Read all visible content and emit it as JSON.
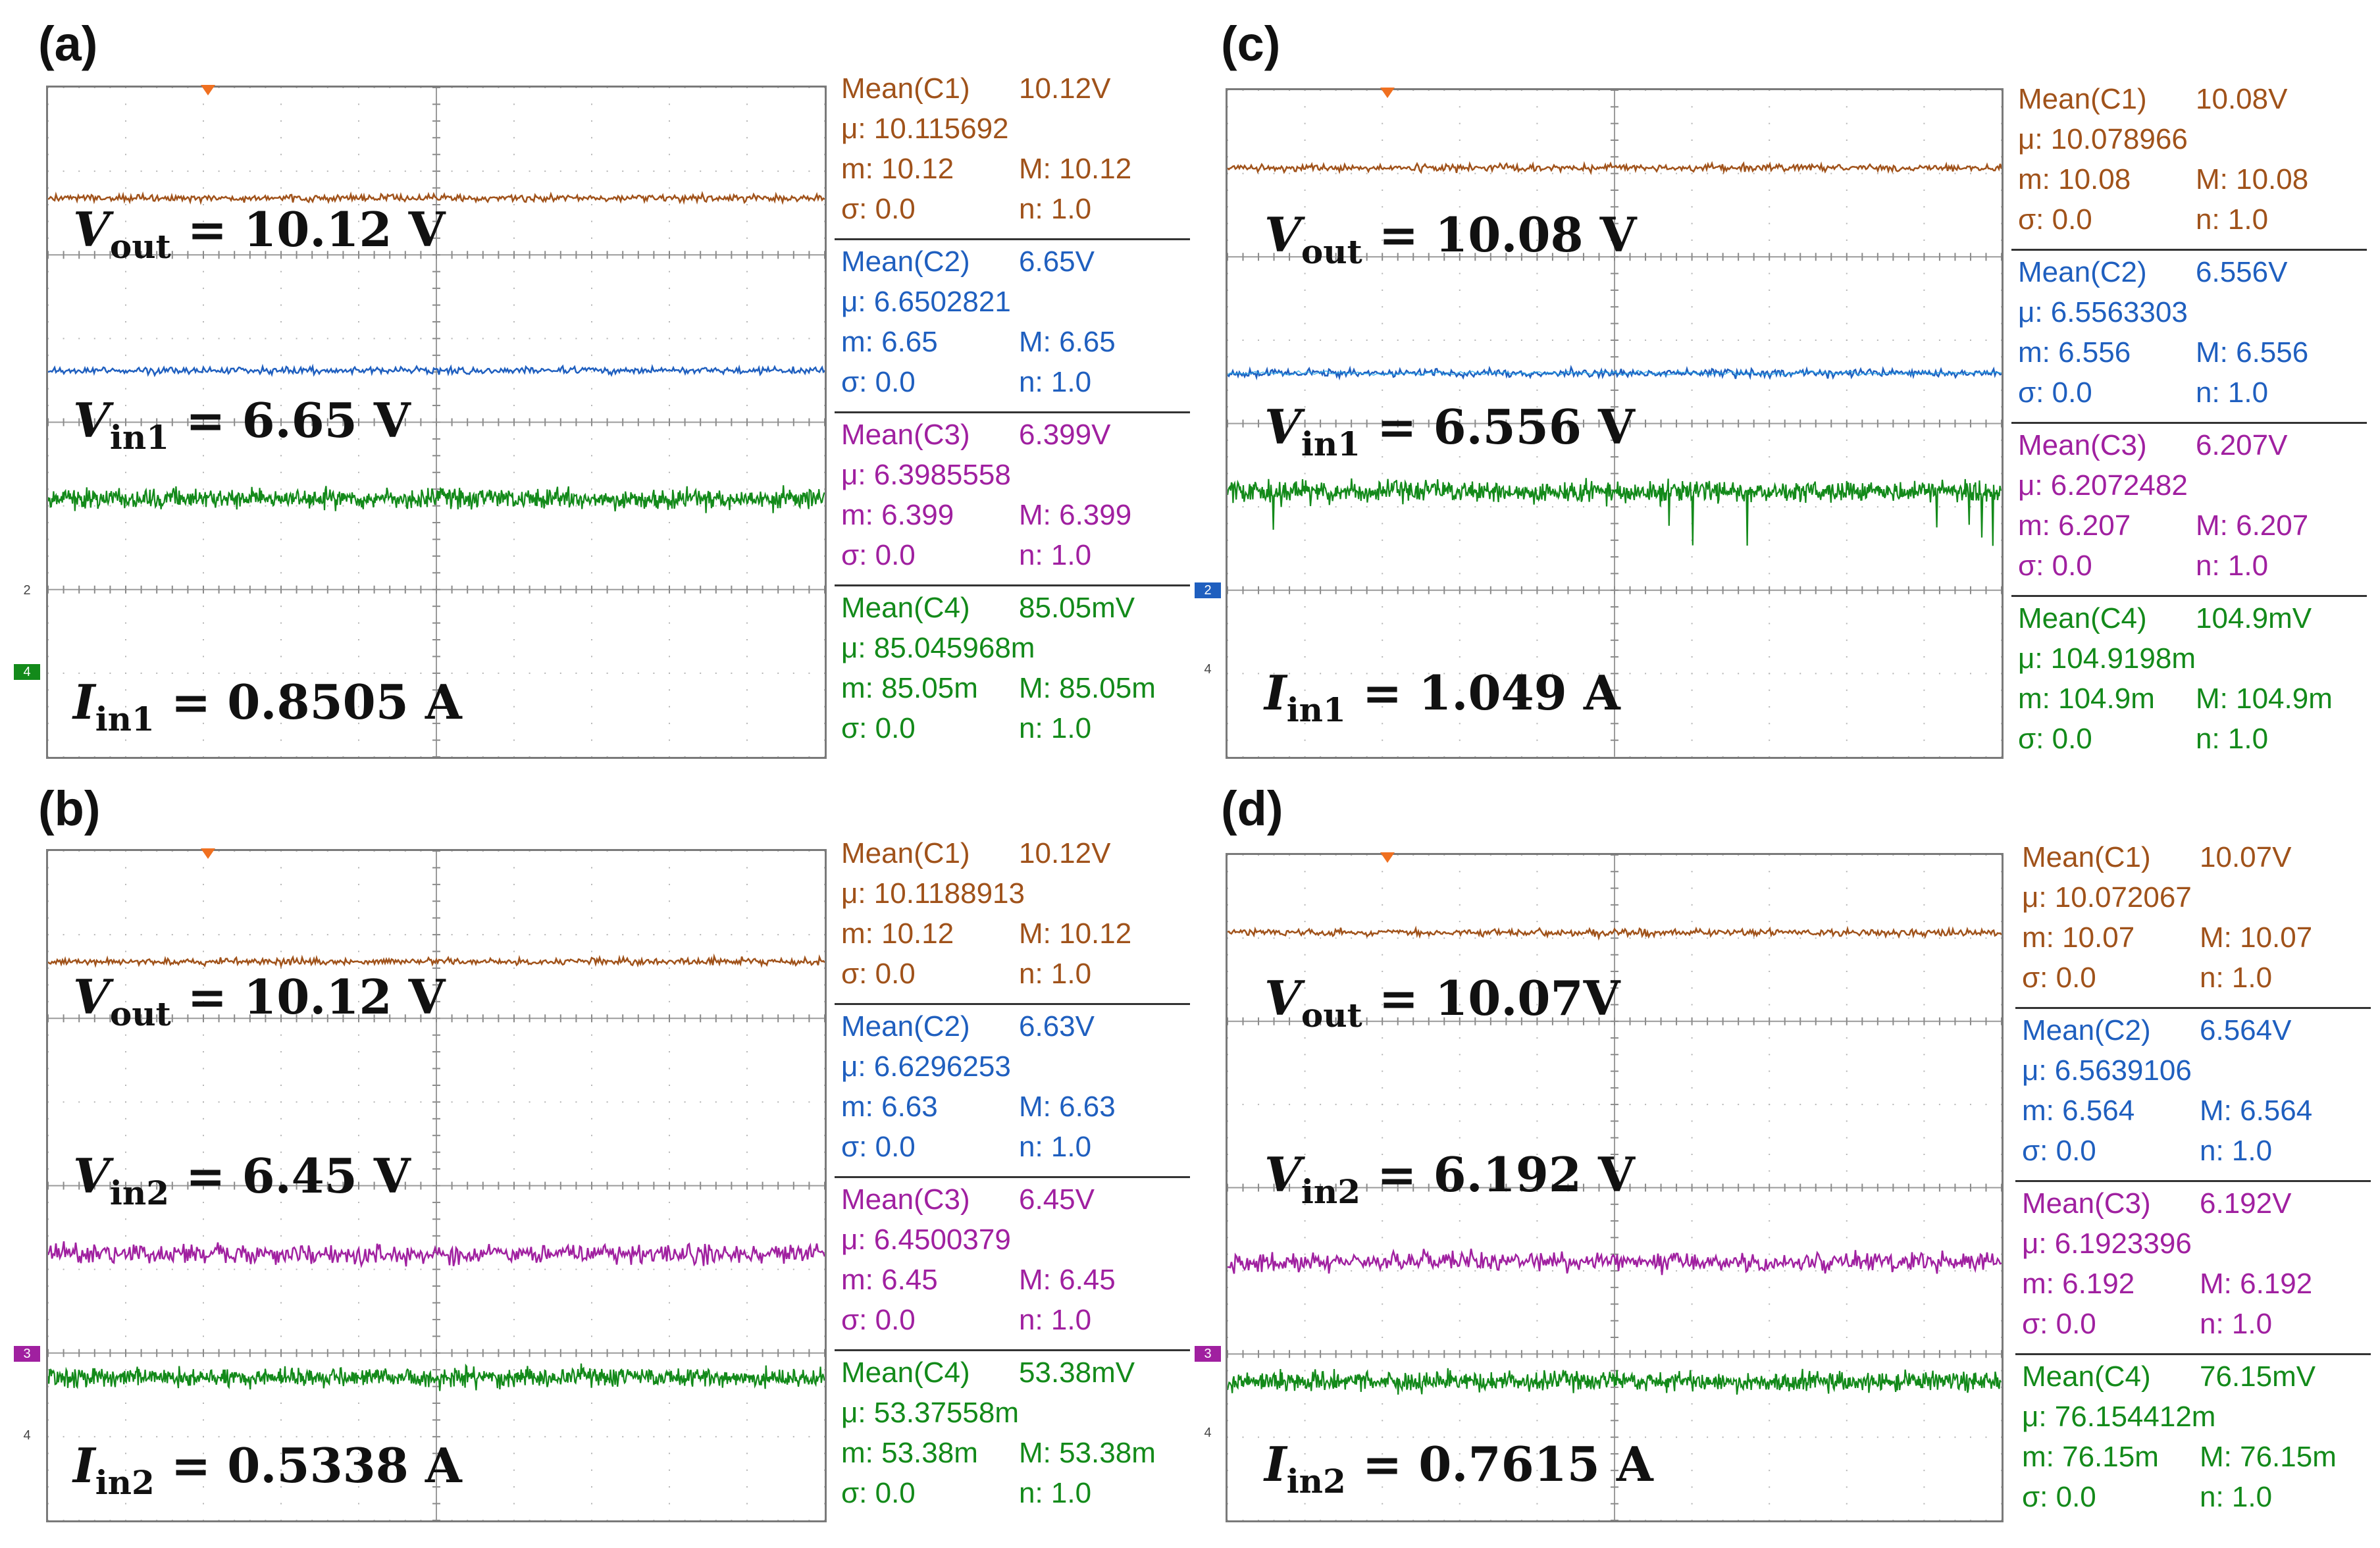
{
  "colors": {
    "ch1": "#a0521a",
    "ch2": "#1f5fbf",
    "ch2_bright": "#27a7e8",
    "ch3": "#a020a0",
    "ch4": "#138a1a",
    "trigger": "#f07020",
    "grid": "#9b9b9b"
  },
  "panels": [
    {
      "label": "(a)",
      "eq1": {
        "sym": "V",
        "sub": "out",
        "val": "= 10.12 V"
      },
      "eq2": {
        "sym": "V",
        "sub": "in1",
        "val": "= 6.65 V"
      },
      "eq3": {
        "sym": "I",
        "sub": "in1",
        "val": "= 0.8505 A"
      },
      "mid_channel": "2",
      "markers": [
        {
          "text": "2",
          "style": "plain"
        },
        {
          "text": "4",
          "style": "box"
        }
      ],
      "measurements": [
        {
          "title": "Mean(C1)",
          "value": "10.12V",
          "mu": "μ: 10.115692",
          "m": "m: 10.12",
          "M": "M: 10.12",
          "sigma": "σ: 0.0",
          "n": "n: 1.0"
        },
        {
          "title": "Mean(C2)",
          "value": "6.65V",
          "mu": "μ: 6.6502821",
          "m": "m: 6.65",
          "M": "M: 6.65",
          "sigma": "σ: 0.0",
          "n": "n: 1.0"
        },
        {
          "title": "Mean(C3)",
          "value": "6.399V",
          "mu": "μ: 6.3985558",
          "m": "m: 6.399",
          "M": "M: 6.399",
          "sigma": "σ: 0.0",
          "n": "n: 1.0"
        },
        {
          "title": "Mean(C4)",
          "value": "85.05mV",
          "mu": "μ: 85.045968m",
          "m": "m: 85.05m",
          "M": "M: 85.05m",
          "sigma": "σ: 0.0",
          "n": "n: 1.0"
        }
      ]
    },
    {
      "label": "(b)",
      "eq1": {
        "sym": "V",
        "sub": "out",
        "val": "= 10.12 V"
      },
      "eq2": {
        "sym": "V",
        "sub": "in2",
        "val": "= 6.45 V"
      },
      "eq3": {
        "sym": "I",
        "sub": "in2",
        "val": "= 0.5338 A"
      },
      "mid_channel": "3",
      "markers": [
        {
          "text": "3",
          "style": "box"
        },
        {
          "text": "4",
          "style": "plain"
        }
      ],
      "measurements": [
        {
          "title": "Mean(C1)",
          "value": "10.12V",
          "mu": "μ: 10.1188913",
          "m": "m: 10.12",
          "M": "M: 10.12",
          "sigma": "σ: 0.0",
          "n": "n: 1.0"
        },
        {
          "title": "Mean(C2)",
          "value": "6.63V",
          "mu": "μ: 6.6296253",
          "m": "m: 6.63",
          "M": "M: 6.63",
          "sigma": "σ: 0.0",
          "n": "n: 1.0"
        },
        {
          "title": "Mean(C3)",
          "value": "6.45V",
          "mu": "μ: 6.4500379",
          "m": "m: 6.45",
          "M": "M: 6.45",
          "sigma": "σ: 0.0",
          "n": "n: 1.0"
        },
        {
          "title": "Mean(C4)",
          "value": "53.38mV",
          "mu": "μ: 53.37558m",
          "m": "m: 53.38m",
          "M": "M: 53.38m",
          "sigma": "σ: 0.0",
          "n": "n: 1.0"
        }
      ]
    },
    {
      "label": "(c)",
      "eq1": {
        "sym": "V",
        "sub": "out",
        "val": "= 10.08 V"
      },
      "eq2": {
        "sym": "V",
        "sub": "in1",
        "val": "= 6.556 V"
      },
      "eq3": {
        "sym": "I",
        "sub": "in1",
        "val": "= 1.049 A"
      },
      "mid_channel": "2",
      "markers": [
        {
          "text": "2",
          "style": "box"
        },
        {
          "text": "4",
          "style": "plain"
        }
      ],
      "measurements": [
        {
          "title": "Mean(C1)",
          "value": "10.08V",
          "mu": "μ: 10.078966",
          "m": "m: 10.08",
          "M": "M: 10.08",
          "sigma": "σ: 0.0",
          "n": "n: 1.0"
        },
        {
          "title": "Mean(C2)",
          "value": "6.556V",
          "mu": "μ: 6.5563303",
          "m": "m: 6.556",
          "M": "M: 6.556",
          "sigma": "σ: 0.0",
          "n": "n: 1.0"
        },
        {
          "title": "Mean(C3)",
          "value": "6.207V",
          "mu": "μ: 6.2072482",
          "m": "m: 6.207",
          "M": "M: 6.207",
          "sigma": "σ: 0.0",
          "n": "n: 1.0"
        },
        {
          "title": "Mean(C4)",
          "value": "104.9mV",
          "mu": "μ: 104.9198m",
          "m": "m: 104.9m",
          "M": "M: 104.9m",
          "sigma": "σ: 0.0",
          "n": "n: 1.0"
        }
      ]
    },
    {
      "label": "(d)",
      "eq1": {
        "sym": "V",
        "sub": "out",
        "val": "= 10.07V"
      },
      "eq2": {
        "sym": "V",
        "sub": "in2",
        "val": "= 6.192 V"
      },
      "eq3": {
        "sym": "I",
        "sub": "in2",
        "val": "= 0.7615 A"
      },
      "mid_channel": "3",
      "markers": [
        {
          "text": "3",
          "style": "box"
        },
        {
          "text": "4",
          "style": "plain"
        }
      ],
      "measurements": [
        {
          "title": "Mean(C1)",
          "value": "10.07V",
          "mu": "μ: 10.072067",
          "m": "m: 10.07",
          "M": "M: 10.07",
          "sigma": "σ: 0.0",
          "n": "n: 1.0"
        },
        {
          "title": "Mean(C2)",
          "value": "6.564V",
          "mu": "μ: 6.5639106",
          "m": "m: 6.564",
          "M": "M: 6.564",
          "sigma": "σ: 0.0",
          "n": "n: 1.0"
        },
        {
          "title": "Mean(C3)",
          "value": "6.192V",
          "mu": "μ: 6.1923396",
          "m": "m: 6.192",
          "M": "M: 6.192",
          "sigma": "σ: 0.0",
          "n": "n: 1.0"
        },
        {
          "title": "Mean(C4)",
          "value": "76.15mV",
          "mu": "μ: 76.154412m",
          "m": "m: 76.15m",
          "M": "M: 76.15m",
          "sigma": "σ: 0.0",
          "n": "n: 1.0"
        }
      ]
    }
  ],
  "chart_data": {
    "type": "line",
    "title": "",
    "xlabel": "",
    "ylabel": "",
    "panels": [
      {
        "label": "(a)",
        "series": [
          {
            "name": "C1",
            "mean": 10.12
          },
          {
            "name": "C2",
            "mean": 6.65
          },
          {
            "name": "C3",
            "mean": 6.399
          },
          {
            "name": "C4",
            "mean": 0.08505
          }
        ]
      },
      {
        "label": "(b)",
        "series": [
          {
            "name": "C1",
            "mean": 10.12
          },
          {
            "name": "C2",
            "mean": 6.63
          },
          {
            "name": "C3",
            "mean": 6.45
          },
          {
            "name": "C4",
            "mean": 0.05338
          }
        ]
      },
      {
        "label": "(c)",
        "series": [
          {
            "name": "C1",
            "mean": 10.08
          },
          {
            "name": "C2",
            "mean": 6.556
          },
          {
            "name": "C3",
            "mean": 6.207
          },
          {
            "name": "C4",
            "mean": 0.1049
          }
        ]
      },
      {
        "label": "(d)",
        "series": [
          {
            "name": "C1",
            "mean": 10.07
          },
          {
            "name": "C2",
            "mean": 6.564
          },
          {
            "name": "C3",
            "mean": 6.192
          },
          {
            "name": "C4",
            "mean": 0.07615
          }
        ]
      }
    ]
  }
}
